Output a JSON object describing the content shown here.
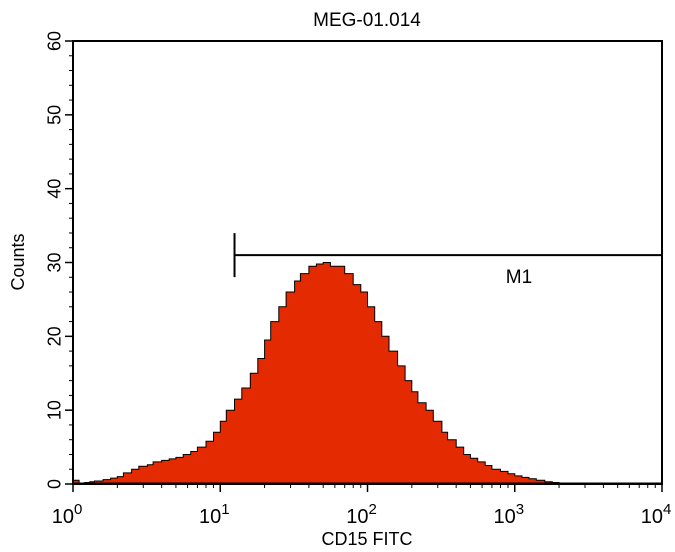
{
  "chart_data": {
    "type": "area",
    "title": "MEG-01.014",
    "xlabel": "CD15 FITC",
    "ylabel": "Counts",
    "x_scale": "log",
    "xlim": [
      1,
      10000
    ],
    "ylim": [
      0,
      60
    ],
    "x_ticks": [
      {
        "base": "10",
        "exp": "0",
        "value": 1
      },
      {
        "base": "10",
        "exp": "1",
        "value": 10
      },
      {
        "base": "10",
        "exp": "2",
        "value": 100
      },
      {
        "base": "10",
        "exp": "3",
        "value": 1000
      },
      {
        "base": "10",
        "exp": "4",
        "value": 10000
      }
    ],
    "y_ticks": [
      "0",
      "10",
      "20",
      "30",
      "40",
      "50",
      "60"
    ],
    "fill_color": "#e32a00",
    "grid": false,
    "marker": {
      "label": "M1",
      "x_start": 12.5,
      "x_end": 10000,
      "y": 31
    },
    "series": [
      {
        "x": [
          1.0,
          1.1,
          1.2,
          1.3,
          1.4,
          1.6,
          1.8,
          2.0,
          2.2,
          2.5,
          2.8,
          3.2,
          3.5,
          4.0,
          4.5,
          5.0,
          5.6,
          6.3,
          7.0,
          8.0,
          9.0,
          10.0,
          11.0,
          12.5,
          14.0,
          16.0,
          18.0,
          20.0,
          22.0,
          25.0,
          28.0,
          32.0,
          35.0,
          40.0,
          45.0,
          50.0,
          56.0,
          63.0,
          70.0,
          80.0,
          90.0,
          100.0,
          112.0,
          125.0,
          140.0,
          160.0,
          180.0,
          200.0,
          220.0,
          250.0,
          280.0,
          320.0,
          350.0,
          400.0,
          450.0,
          500.0,
          560.0,
          630.0,
          700.0,
          800.0,
          900.0,
          1000.0,
          1120.0,
          1250.0,
          1400.0,
          1600.0,
          1800.0,
          2000.0,
          2200.0,
          2500.0,
          2800.0
        ],
        "values": [
          0.5,
          0,
          0.2,
          0.3,
          0.4,
          0.6,
          0.8,
          1.0,
          1.5,
          2.0,
          2.4,
          2.6,
          3.0,
          3.2,
          3.4,
          3.6,
          4.0,
          4.4,
          5.0,
          5.8,
          7.0,
          8.5,
          10.0,
          11.5,
          13.0,
          15.0,
          17.0,
          19.5,
          22.0,
          24.0,
          26.0,
          27.5,
          28.5,
          29.5,
          29.8,
          30.0,
          29.5,
          29.5,
          28.5,
          27.0,
          26.0,
          24.0,
          22.0,
          20.0,
          18.0,
          16.0,
          14.0,
          12.5,
          11.0,
          10.0,
          8.5,
          7.0,
          6.0,
          5.0,
          4.0,
          3.5,
          3.0,
          2.5,
          2.0,
          1.7,
          1.4,
          1.1,
          0.9,
          0.7,
          0.5,
          0.3,
          0.2,
          0.1,
          0.05,
          0,
          0
        ]
      }
    ]
  }
}
